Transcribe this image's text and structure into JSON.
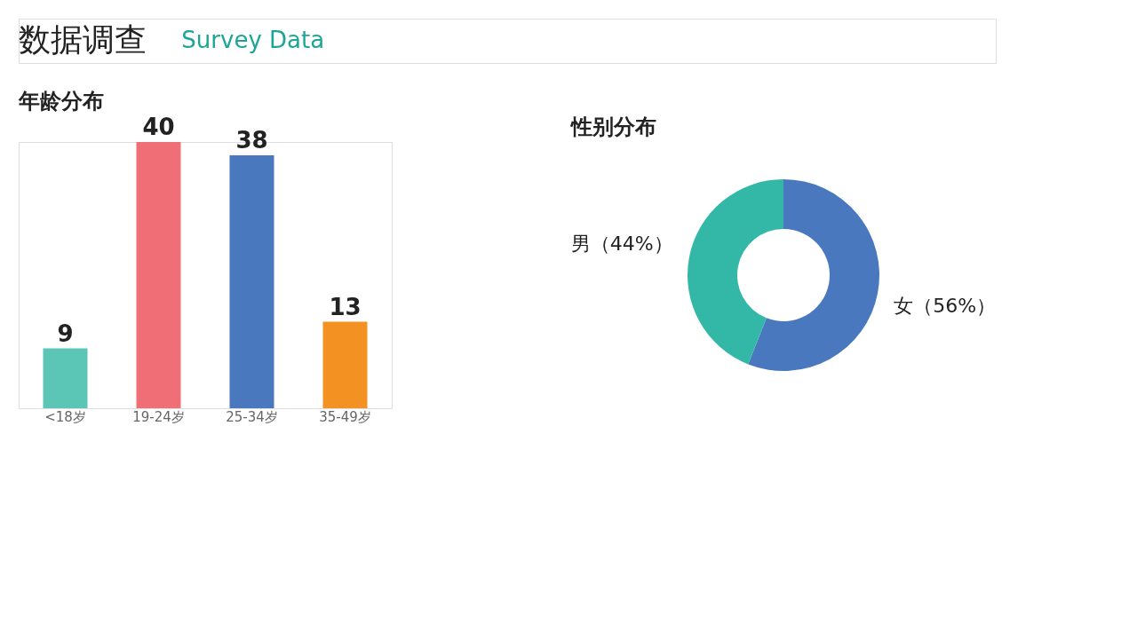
{
  "chart_data": [
    {
      "type": "bar",
      "title": "年龄分布",
      "annotations": [
        "数据调查",
        "Survey Data"
      ],
      "categories": [
        "<18岁",
        "19-24岁",
        "25-34岁",
        "35-49岁"
      ],
      "values": [
        9,
        40,
        38,
        13
      ],
      "colors": [
        "#5cc6b6",
        "#f06e76",
        "#4a78be",
        "#f39122"
      ],
      "data_labels": true,
      "tick_labels": "x",
      "grid": false
    },
    {
      "type": "donut",
      "title": "性别分布",
      "categories": [
        "女",
        "男"
      ],
      "values": [
        56,
        44
      ],
      "value_labels": [
        "（56%）",
        "（44%）"
      ],
      "colors": [
        "#4a78be",
        "#33b8a8"
      ]
    }
  ]
}
